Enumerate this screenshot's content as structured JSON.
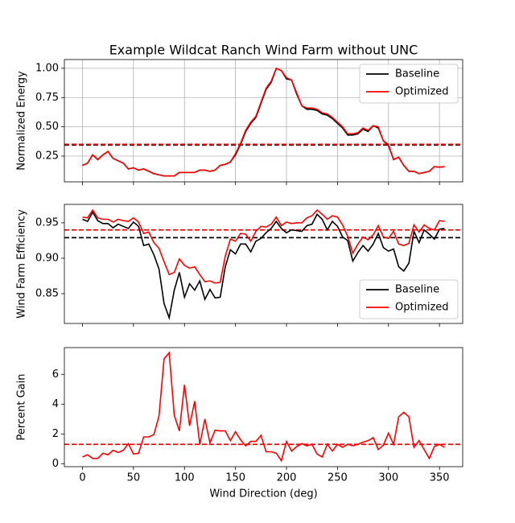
{
  "chart_data": [
    {
      "type": "line",
      "title": "Example Wildcat Ranch Wind Farm without UNC",
      "ylabel": "Normalized Energy",
      "x": [
        0,
        5,
        10,
        15,
        20,
        25,
        30,
        35,
        40,
        45,
        50,
        55,
        60,
        65,
        70,
        75,
        80,
        85,
        90,
        95,
        100,
        105,
        110,
        115,
        120,
        125,
        130,
        135,
        140,
        145,
        150,
        155,
        160,
        165,
        170,
        175,
        180,
        185,
        190,
        195,
        200,
        205,
        210,
        215,
        220,
        225,
        230,
        235,
        240,
        245,
        250,
        255,
        260,
        265,
        270,
        275,
        280,
        285,
        290,
        295,
        300,
        305,
        310,
        315,
        320,
        325,
        330,
        335,
        340,
        345,
        350,
        355
      ],
      "series": [
        {
          "name": "Baseline",
          "color": "#000000",
          "values": [
            0.17,
            0.19,
            0.26,
            0.22,
            0.26,
            0.29,
            0.23,
            0.21,
            0.19,
            0.14,
            0.15,
            0.13,
            0.14,
            0.12,
            0.1,
            0.09,
            0.08,
            0.08,
            0.08,
            0.11,
            0.11,
            0.11,
            0.11,
            0.13,
            0.13,
            0.12,
            0.13,
            0.17,
            0.18,
            0.2,
            0.26,
            0.35,
            0.46,
            0.53,
            0.58,
            0.7,
            0.82,
            0.88,
            1.0,
            0.98,
            0.91,
            0.9,
            0.78,
            0.68,
            0.65,
            0.65,
            0.64,
            0.61,
            0.6,
            0.57,
            0.53,
            0.49,
            0.43,
            0.43,
            0.44,
            0.48,
            0.46,
            0.51,
            0.49,
            0.38,
            0.34,
            0.22,
            0.24,
            0.17,
            0.12,
            0.12,
            0.1,
            0.11,
            0.12,
            0.16,
            0.155,
            0.16
          ]
        },
        {
          "name": "Optimized",
          "color": "#ff0000",
          "values": [
            0.17,
            0.19,
            0.26,
            0.22,
            0.26,
            0.29,
            0.23,
            0.21,
            0.19,
            0.14,
            0.15,
            0.13,
            0.14,
            0.12,
            0.1,
            0.09,
            0.08,
            0.08,
            0.08,
            0.11,
            0.11,
            0.11,
            0.11,
            0.13,
            0.13,
            0.12,
            0.13,
            0.17,
            0.18,
            0.2,
            0.27,
            0.36,
            0.47,
            0.54,
            0.59,
            0.71,
            0.83,
            0.89,
            1.0,
            0.98,
            0.92,
            0.9,
            0.79,
            0.68,
            0.66,
            0.66,
            0.65,
            0.62,
            0.61,
            0.58,
            0.54,
            0.5,
            0.44,
            0.44,
            0.45,
            0.49,
            0.47,
            0.51,
            0.5,
            0.38,
            0.35,
            0.22,
            0.24,
            0.17,
            0.12,
            0.12,
            0.1,
            0.11,
            0.12,
            0.16,
            0.155,
            0.16
          ]
        }
      ],
      "hlines": [
        {
          "value": 0.345,
          "color": "#000000"
        },
        {
          "value": 0.35,
          "color": "#ff0000"
        }
      ],
      "xlim": [
        -17.75,
        372.75
      ],
      "xticks": [
        0,
        50,
        100,
        150,
        200,
        250,
        300,
        350
      ],
      "show_xtick_labels": false,
      "ylim": [
        0.03,
        1.075
      ],
      "yticks": [
        {
          "value": 0.25,
          "label": "0.25"
        },
        {
          "value": 0.5,
          "label": "0.50"
        },
        {
          "value": 0.75,
          "label": "0.75"
        },
        {
          "value": 1.0,
          "label": "1.00"
        }
      ],
      "grid": true,
      "legend": "upper right"
    },
    {
      "type": "line",
      "ylabel": "Wind Farm Efficiency",
      "x": [
        0,
        5,
        10,
        15,
        20,
        25,
        30,
        35,
        40,
        45,
        50,
        55,
        60,
        65,
        70,
        75,
        80,
        85,
        90,
        95,
        100,
        105,
        110,
        115,
        120,
        125,
        130,
        135,
        140,
        145,
        150,
        155,
        160,
        165,
        170,
        175,
        180,
        185,
        190,
        195,
        200,
        205,
        210,
        215,
        220,
        225,
        230,
        235,
        240,
        245,
        250,
        255,
        260,
        265,
        270,
        275,
        280,
        285,
        290,
        295,
        300,
        305,
        310,
        315,
        320,
        325,
        330,
        335,
        340,
        345,
        350,
        355
      ],
      "series": [
        {
          "name": "Baseline",
          "color": "#000000",
          "values": [
            0.955,
            0.952,
            0.965,
            0.953,
            0.949,
            0.949,
            0.943,
            0.948,
            0.945,
            0.942,
            0.951,
            0.945,
            0.918,
            0.92,
            0.905,
            0.885,
            0.836,
            0.816,
            0.855,
            0.88,
            0.845,
            0.864,
            0.855,
            0.868,
            0.842,
            0.856,
            0.844,
            0.845,
            0.888,
            0.912,
            0.906,
            0.92,
            0.92,
            0.909,
            0.924,
            0.928,
            0.936,
            0.942,
            0.952,
            0.942,
            0.936,
            0.94,
            0.939,
            0.938,
            0.946,
            0.948,
            0.962,
            0.955,
            0.94,
            0.952,
            0.945,
            0.93,
            0.925,
            0.896,
            0.908,
            0.918,
            0.91,
            0.92,
            0.935,
            0.915,
            0.91,
            0.913,
            0.888,
            0.882,
            0.893,
            0.938,
            0.922,
            0.94,
            0.934,
            0.927,
            0.941,
            0.942
          ]
        },
        {
          "name": "Optimized",
          "color": "#ff0000",
          "values": [
            0.958,
            0.957,
            0.968,
            0.957,
            0.955,
            0.955,
            0.951,
            0.955,
            0.953,
            0.952,
            0.957,
            0.951,
            0.935,
            0.937,
            0.922,
            0.914,
            0.895,
            0.877,
            0.88,
            0.899,
            0.89,
            0.886,
            0.888,
            0.877,
            0.867,
            0.868,
            0.865,
            0.866,
            0.903,
            0.927,
            0.924,
            0.935,
            0.934,
            0.924,
            0.938,
            0.945,
            0.944,
            0.948,
            0.958,
            0.946,
            0.951,
            0.949,
            0.95,
            0.95,
            0.957,
            0.96,
            0.968,
            0.962,
            0.955,
            0.96,
            0.958,
            0.947,
            0.931,
            0.907,
            0.92,
            0.93,
            0.926,
            0.933,
            0.946,
            0.93,
            0.928,
            0.938,
            0.92,
            0.918,
            0.921,
            0.947,
            0.937,
            0.947,
            0.942,
            0.94,
            0.953,
            0.952
          ]
        }
      ],
      "hlines": [
        {
          "value": 0.929,
          "color": "#000000"
        },
        {
          "value": 0.94,
          "color": "#ff0000"
        }
      ],
      "xlim": [
        -17.75,
        372.75
      ],
      "xticks": [
        0,
        50,
        100,
        150,
        200,
        250,
        300,
        350
      ],
      "show_xtick_labels": false,
      "ylim": [
        0.808,
        0.976
      ],
      "yticks": [
        {
          "value": 0.85,
          "label": "0.85"
        },
        {
          "value": 0.9,
          "label": "0.90"
        },
        {
          "value": 0.95,
          "label": "0.95"
        }
      ],
      "grid": false,
      "legend": "lower right"
    },
    {
      "type": "line",
      "ylabel": "Percent Gain",
      "xlabel": "Wind Direction (deg)",
      "x": [
        0,
        5,
        10,
        15,
        20,
        25,
        30,
        35,
        40,
        45,
        50,
        55,
        60,
        65,
        70,
        75,
        80,
        85,
        90,
        95,
        100,
        105,
        110,
        115,
        120,
        125,
        130,
        135,
        140,
        145,
        150,
        155,
        160,
        165,
        170,
        175,
        180,
        185,
        190,
        195,
        200,
        205,
        210,
        215,
        220,
        225,
        230,
        235,
        240,
        245,
        250,
        255,
        260,
        265,
        270,
        275,
        280,
        285,
        290,
        295,
        300,
        305,
        310,
        315,
        320,
        325,
        330,
        335,
        340,
        345,
        350,
        355
      ],
      "series": [
        {
          "color": "#ff0000",
          "values": [
            0.45,
            0.6,
            0.35,
            0.35,
            0.7,
            0.6,
            0.9,
            0.75,
            0.9,
            1.35,
            0.65,
            0.7,
            1.8,
            1.8,
            1.95,
            3.2,
            7.05,
            7.45,
            3.25,
            2.2,
            5.3,
            2.55,
            4.2,
            1.3,
            3.0,
            1.4,
            2.25,
            2.2,
            2.2,
            1.55,
            2.15,
            1.6,
            1.2,
            1.5,
            1.5,
            1.9,
            0.8,
            0.8,
            0.7,
            0.2,
            1.5,
            0.85,
            1.15,
            1.35,
            1.2,
            1.3,
            0.65,
            0.45,
            1.3,
            0.85,
            1.3,
            1.1,
            1.3,
            1.2,
            1.3,
            1.45,
            1.55,
            1.75,
            0.95,
            1.25,
            2.05,
            1.3,
            3.15,
            3.45,
            3.15,
            1.1,
            1.55,
            0.95,
            0.35,
            1.15,
            1.3,
            1.1
          ]
        }
      ],
      "hlines": [
        {
          "value": 1.3,
          "color": "#ff0000"
        }
      ],
      "xlim": [
        -17.75,
        372.75
      ],
      "xticks": [
        0,
        50,
        100,
        150,
        200,
        250,
        300,
        350
      ],
      "show_xtick_labels": true,
      "ylim": [
        -0.2,
        7.8
      ],
      "yticks": [
        0,
        2,
        4,
        6
      ],
      "grid": false
    }
  ]
}
